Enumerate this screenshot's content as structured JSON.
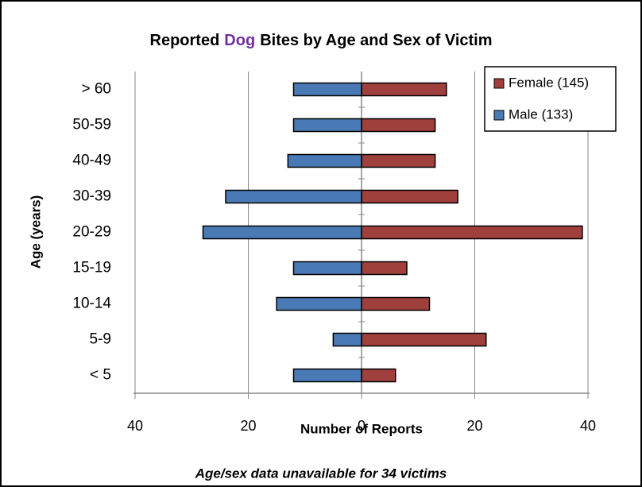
{
  "chart_data": {
    "type": "pyramid",
    "title": [
      {
        "text": "Reported",
        "color": "#000000"
      },
      {
        "text": "Dog",
        "color": "#7030a0"
      },
      {
        "text": "Bites by Age and Sex of Victim",
        "color": "#000000"
      }
    ],
    "x_label": "Number of Reports",
    "y_label": "Age (years)",
    "footnote": "Age/sex data unavailable for 34 victims",
    "categories": [
      "< 5",
      "5-9",
      "10-14",
      "15-19",
      "20-29",
      "30-39",
      "40-49",
      "50-59",
      "> 60"
    ],
    "series": [
      {
        "name": "Female (145)",
        "color": "#a0403d",
        "values": [
          6,
          22,
          12,
          8,
          39,
          17,
          13,
          13,
          15
        ]
      },
      {
        "name": "Male (133)",
        "color": "#4a7ab5",
        "values": [
          -12,
          -5,
          -15,
          -12,
          -28,
          -24,
          -13,
          -12,
          -12
        ]
      }
    ],
    "xlim": [
      -40,
      40
    ],
    "xticks": [
      {
        "value": -40,
        "label": "40"
      },
      {
        "value": -20,
        "label": "20"
      },
      0,
      20,
      40
    ],
    "grid": true,
    "legend": "top-right"
  }
}
